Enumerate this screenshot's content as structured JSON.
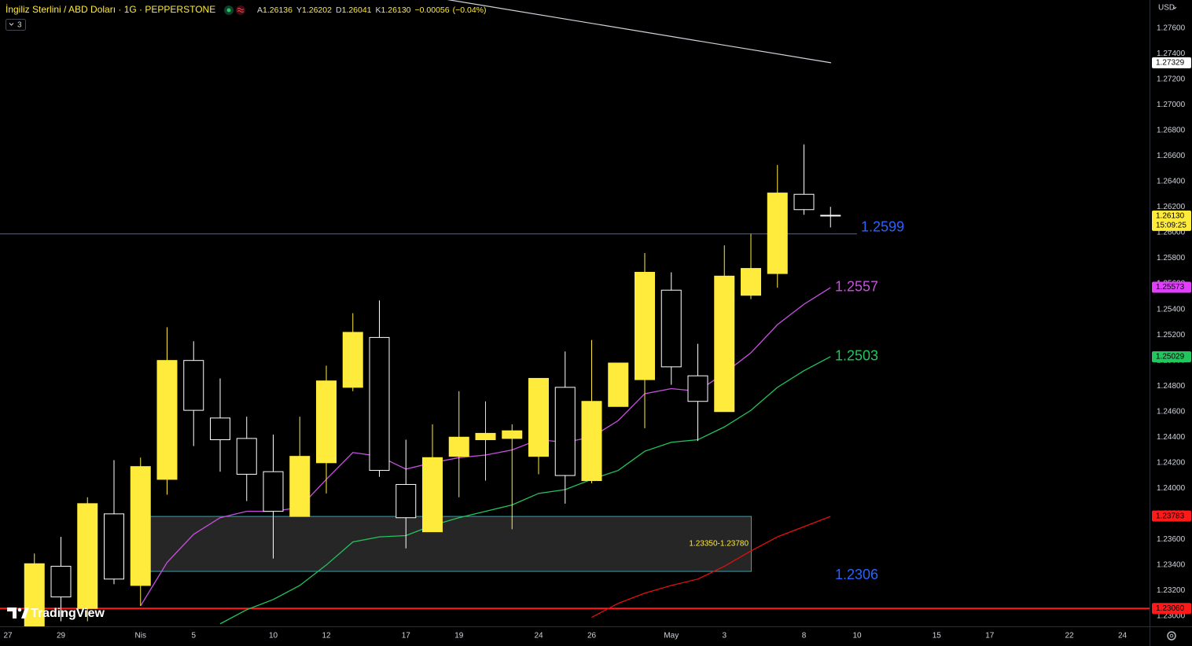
{
  "header": {
    "symbol": "İngiliz Sterlini / ABD Doları · 1G · PEPPERSTONE",
    "indicator_count": 3,
    "currency": "USD",
    "brand": "TradingView"
  },
  "chart_data": {
    "type": "candlestick",
    "categories": [
      "27",
      null,
      "29",
      null,
      null,
      "Nis",
      null,
      "5",
      null,
      null,
      "10",
      null,
      "12",
      null,
      null,
      "17",
      null,
      "19",
      null,
      null,
      "24",
      null,
      "26",
      null,
      null,
      "May",
      null,
      "3",
      null,
      null,
      "8",
      null,
      "10",
      null,
      null,
      "15",
      null,
      "17",
      null,
      null,
      "22",
      null,
      "24"
    ],
    "open": [
      null,
      1.2292,
      1.2339,
      1.2306,
      1.238,
      1.2324,
      1.2407,
      1.25,
      1.2455,
      1.2439,
      1.2413,
      1.2378,
      1.242,
      1.2479,
      1.2518,
      1.2403,
      1.2366,
      1.2425,
      1.2438,
      1.2439,
      1.2425,
      1.2479,
      1.2406,
      1.2464,
      1.2485,
      1.2555,
      1.2488,
      1.246,
      1.2551,
      1.2568,
      1.263,
      1.26136,
      null,
      null,
      null,
      null,
      null,
      null,
      null,
      null,
      null,
      null,
      null
    ],
    "high": [
      null,
      1.2349,
      1.2362,
      1.2393,
      1.2422,
      1.2424,
      1.2526,
      1.2515,
      1.2486,
      1.2456,
      1.2442,
      1.2456,
      1.2496,
      1.2537,
      1.2547,
      1.2438,
      1.245,
      1.2476,
      1.2468,
      1.245,
      1.2486,
      1.2507,
      1.2516,
      1.2498,
      1.2584,
      1.2569,
      1.2513,
      1.259,
      1.2599,
      1.2653,
      1.2669,
      1.26202,
      null,
      null,
      null,
      null,
      null,
      null,
      null,
      null,
      null,
      null,
      null
    ],
    "low": [
      null,
      1.2287,
      1.2296,
      1.2296,
      1.2325,
      1.2308,
      1.2395,
      1.2433,
      1.2413,
      1.239,
      1.2345,
      1.2378,
      1.2396,
      1.2476,
      1.2409,
      1.2353,
      1.2366,
      1.2393,
      1.2406,
      1.2368,
      1.2411,
      1.2388,
      1.2404,
      1.2464,
      1.2447,
      1.2481,
      1.2437,
      1.246,
      1.2548,
      1.2557,
      1.2614,
      1.26041,
      null,
      null,
      null,
      null,
      null,
      null,
      null,
      null,
      null,
      null,
      null
    ],
    "close": [
      null,
      1.2341,
      1.2315,
      1.2388,
      1.2329,
      1.2417,
      1.25,
      1.2461,
      1.2438,
      1.2411,
      1.2382,
      1.2425,
      1.2484,
      1.2522,
      1.2414,
      1.2377,
      1.2424,
      1.244,
      1.2443,
      1.2445,
      1.2486,
      1.241,
      1.2468,
      1.2498,
      1.2569,
      1.2495,
      1.2468,
      1.2566,
      1.2572,
      1.2631,
      1.2618,
      1.2613,
      null,
      null,
      null,
      null,
      null,
      null,
      null,
      null,
      null,
      null,
      null
    ],
    "up_color": "#ffeb3b",
    "down_color": "#000000",
    "down_border": "#ffffff",
    "series": [
      {
        "color": "#c850e0",
        "values": [
          null,
          null,
          null,
          null,
          null,
          1.2308,
          1.2342,
          1.2364,
          1.2377,
          1.2382,
          1.2382,
          1.2385,
          1.2407,
          1.2428,
          1.2425,
          1.2415,
          1.242,
          1.2424,
          1.2426,
          1.243,
          1.2438,
          1.2436,
          1.244,
          1.2453,
          1.2474,
          1.2478,
          1.2476,
          1.249,
          1.2506,
          1.2528,
          1.2544,
          1.2557,
          null,
          null,
          null,
          null,
          null,
          null,
          null,
          null,
          null,
          null,
          null
        ]
      },
      {
        "color": "#22c55e",
        "values": [
          null,
          null,
          null,
          null,
          null,
          null,
          null,
          null,
          1.2294,
          1.2305,
          1.2313,
          1.2324,
          1.234,
          1.2358,
          1.2362,
          1.2363,
          1.2371,
          1.2377,
          1.2382,
          1.2387,
          1.2396,
          1.2399,
          1.2407,
          1.2414,
          1.2429,
          1.2436,
          1.2438,
          1.2448,
          1.2461,
          1.2479,
          1.2492,
          1.2503,
          null,
          null,
          null,
          null,
          null,
          null,
          null,
          null,
          null,
          null,
          null
        ]
      },
      {
        "color": "#e01010",
        "values": [
          null,
          null,
          null,
          null,
          null,
          null,
          null,
          null,
          null,
          null,
          null,
          null,
          null,
          null,
          null,
          null,
          null,
          null,
          null,
          null,
          null,
          null,
          1.2299,
          1.231,
          1.2318,
          1.2324,
          1.2329,
          1.2339,
          1.2351,
          1.2362,
          1.237,
          1.2378,
          null,
          null,
          null,
          null,
          null,
          null,
          null,
          null,
          null,
          null,
          null
        ]
      }
    ],
    "ylim": [
      1.2292,
      1.2782
    ],
    "yticks": [
      {
        "value": 1.276,
        "label": "1.27600"
      },
      {
        "value": 1.274,
        "label": "1.27400"
      },
      {
        "value": 1.272,
        "label": "1.27200"
      },
      {
        "value": 1.27,
        "label": "1.27000"
      },
      {
        "value": 1.268,
        "label": "1.26800"
      },
      {
        "value": 1.266,
        "label": "1.26600"
      },
      {
        "value": 1.264,
        "label": "1.26400"
      },
      {
        "value": 1.262,
        "label": "1.26200"
      },
      {
        "value": 1.26,
        "label": "1.26000"
      },
      {
        "value": 1.258,
        "label": "1.25800"
      },
      {
        "value": 1.256,
        "label": "1.25600"
      },
      {
        "value": 1.254,
        "label": "1.25400"
      },
      {
        "value": 1.252,
        "label": "1.25200"
      },
      {
        "value": 1.25,
        "label": "1.25000"
      },
      {
        "value": 1.248,
        "label": "1.24800"
      },
      {
        "value": 1.246,
        "label": "1.24600"
      },
      {
        "value": 1.244,
        "label": "1.24400"
      },
      {
        "value": 1.242,
        "label": "1.24200"
      },
      {
        "value": 1.24,
        "label": "1.24000"
      },
      {
        "value": 1.238,
        "label": "1.23800"
      },
      {
        "value": 1.236,
        "label": "1.23600"
      },
      {
        "value": 1.234,
        "label": "1.23400"
      },
      {
        "value": 1.232,
        "label": "1.23200"
      },
      {
        "value": 1.23,
        "label": "1.23000"
      }
    ],
    "ohlc_legend": [
      {
        "key": "A",
        "value": 1.26136,
        "label": "1.26136"
      },
      {
        "key": "Y",
        "value": 1.26202,
        "label": "1.26202"
      },
      {
        "key": "D",
        "value": 1.26041,
        "label": "1.26041"
      },
      {
        "key": "K",
        "value": 1.2613,
        "label": "1.26130"
      }
    ],
    "change": {
      "value": -0.00056,
      "label": "−0.00056"
    },
    "change_percent": {
      "value": -0.04,
      "label": "(−0.04%)"
    },
    "hlines": [
      {
        "value": 1.2599,
        "label": "1.2599",
        "color": "#2962ff",
        "label_color": "#2962ff"
      },
      {
        "value": 1.2306,
        "label": "1.2306",
        "color": "#ff1a1a",
        "label_color": "#2962ff"
      }
    ],
    "ma_labels": [
      {
        "value": 1.2557,
        "label": "1.2557",
        "color": "#c850e0"
      },
      {
        "value": 1.2503,
        "label": "1.2503",
        "color": "#22c55e"
      }
    ],
    "zone": {
      "from": 1.2335,
      "to": 1.2378,
      "label": "1.23350-1.23780"
    },
    "price_tags": [
      {
        "value": 1.27329,
        "label": "1.27329",
        "color": "#ffffff"
      },
      {
        "value": 1.2613,
        "label": "1.26130",
        "color": "#ffeb3b"
      },
      {
        "value": 1.25573,
        "label": "1.25573",
        "color": "#e040fb"
      },
      {
        "value": 1.25029,
        "label": "1.25029",
        "color": "#22c55e"
      },
      {
        "value": 1.23783,
        "label": "1.23783",
        "color": "#ff1a1a"
      },
      {
        "value": 1.2306,
        "label": "1.23060",
        "color": "#ff1a1a"
      }
    ],
    "countdown": "15:09:25"
  }
}
